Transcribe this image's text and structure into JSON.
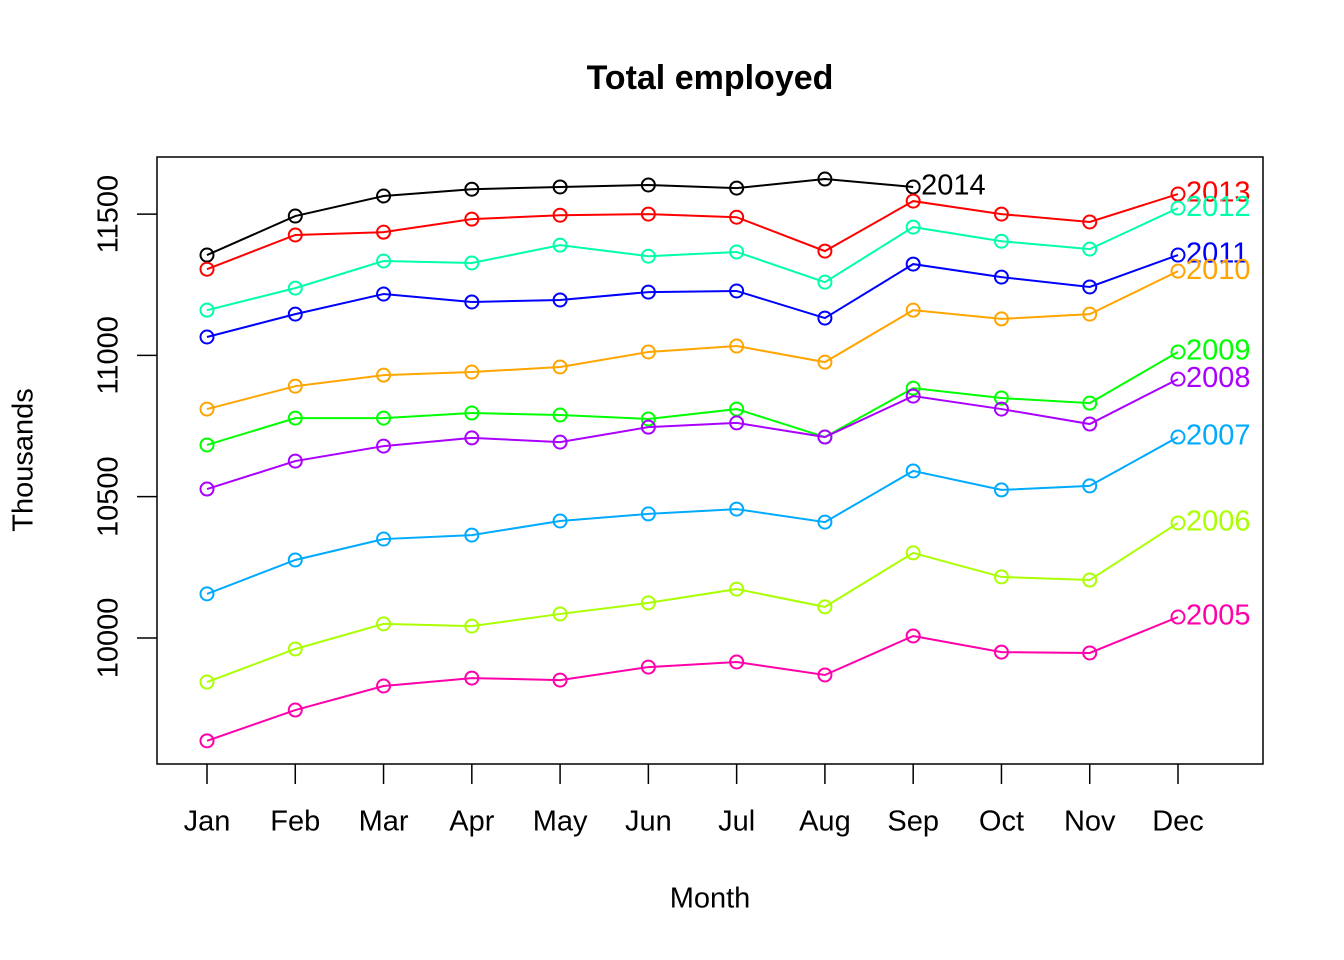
{
  "chart_data": {
    "type": "line",
    "title": "Total employed",
    "x_label": "Month",
    "y_label": "Thousands",
    "categories": [
      "Jan",
      "Feb",
      "Mar",
      "Apr",
      "May",
      "Jun",
      "Jul",
      "Aug",
      "Sep",
      "Oct",
      "Nov",
      "Dec"
    ],
    "ylim": [
      9554,
      11702
    ],
    "yticks": [
      10000,
      10500,
      11000,
      11500
    ],
    "grid": false,
    "markers": "open-circle",
    "series": [
      {
        "name": "2014",
        "color": "#000000",
        "values": [
          11355,
          11493,
          11564,
          11588,
          11596,
          11603,
          11592,
          11624,
          11596,
          null,
          null,
          null
        ]
      },
      {
        "name": "2013",
        "color": "#ff0000",
        "values": [
          11305,
          11426,
          11436,
          11482,
          11496,
          11500,
          11489,
          11369,
          11546,
          11500,
          11472,
          11571
        ]
      },
      {
        "name": "2012",
        "color": "#00ffaa",
        "values": [
          11160,
          11238,
          11334,
          11327,
          11390,
          11351,
          11366,
          11259,
          11454,
          11404,
          11376,
          11521
        ]
      },
      {
        "name": "2011",
        "color": "#0000ff",
        "values": [
          11065,
          11146,
          11217,
          11189,
          11196,
          11224,
          11228,
          11132,
          11323,
          11277,
          11242,
          11355
        ]
      },
      {
        "name": "2010",
        "color": "#ffa500",
        "values": [
          10810,
          10891,
          10930,
          10941,
          10959,
          11012,
          11033,
          10976,
          11160,
          11129,
          11146,
          11298
        ]
      },
      {
        "name": "2009",
        "color": "#00ff00",
        "values": [
          10683,
          10778,
          10778,
          10796,
          10789,
          10775,
          10810,
          10711,
          10884,
          10849,
          10831,
          11012
        ]
      },
      {
        "name": "2008",
        "color": "#aa00ff",
        "values": [
          10527,
          10626,
          10679,
          10708,
          10693,
          10746,
          10761,
          10711,
          10856,
          10810,
          10757,
          10916
        ]
      },
      {
        "name": "2007",
        "color": "#00aaff",
        "values": [
          10156,
          10276,
          10350,
          10364,
          10414,
          10439,
          10456,
          10410,
          10591,
          10524,
          10538,
          10711
        ]
      },
      {
        "name": "2006",
        "color": "#aaff00",
        "values": [
          9844,
          9961,
          10050,
          10042,
          10085,
          10124,
          10173,
          10110,
          10301,
          10216,
          10205,
          10407
        ]
      },
      {
        "name": "2005",
        "color": "#ff00aa",
        "values": [
          9636,
          9745,
          9830,
          9858,
          9851,
          9897,
          9915,
          9869,
          10007,
          9950,
          9947,
          10074
        ]
      }
    ]
  }
}
